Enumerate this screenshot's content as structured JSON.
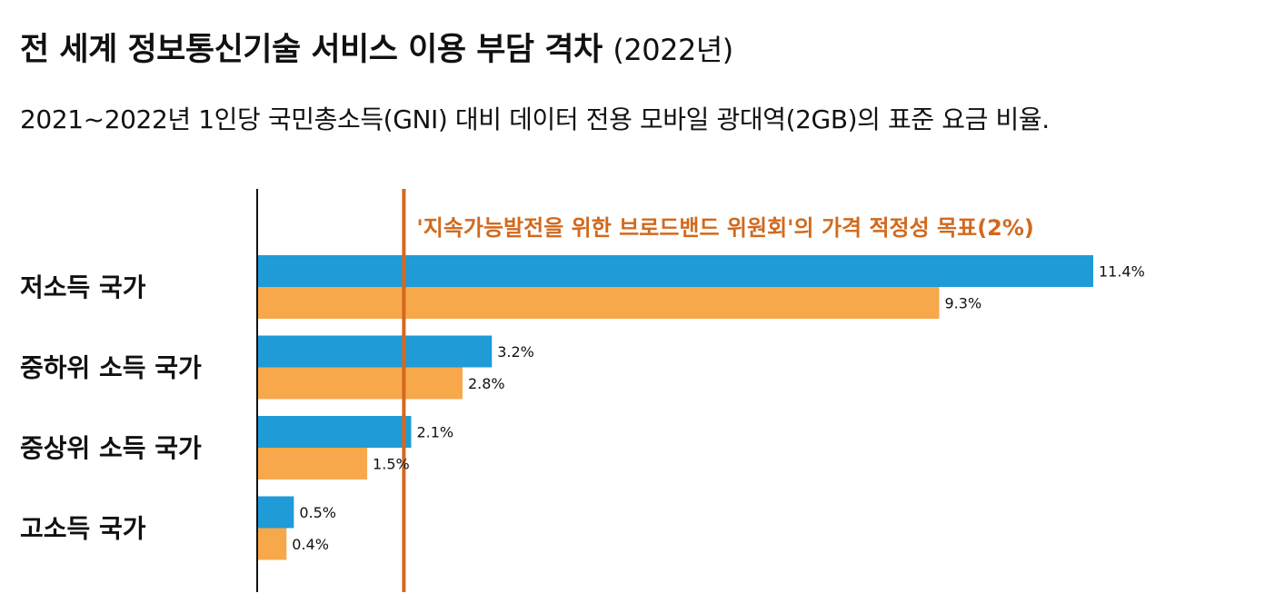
{
  "title": "전 세계 정보통신기술 서비스 이용 부담 격차",
  "title_suffix": "(2022년)",
  "subtitle": "2021~2022년 1인당 국민총소득(GNI) 대비 데이터 전용 모바일 광대역(2GB)의 표준 요금 비율.",
  "colors": {
    "series_2021": "#1f9bd7",
    "series_2022": "#f7a84a",
    "target_line": "#d2691e",
    "axis": "#111111"
  },
  "chart_data": {
    "type": "bar",
    "orientation": "horizontal",
    "categories": [
      "저소득 국가",
      "중하위 소득 국가",
      "중상위 소득 국가",
      "고소득 국가"
    ],
    "series": [
      {
        "values": [
          11.4,
          3.2,
          2.1,
          0.5
        ],
        "labels": [
          "11.4%",
          "3.2%",
          "2.1%",
          "0.5%"
        ]
      },
      {
        "values": [
          9.3,
          2.8,
          1.5,
          0.4
        ],
        "labels": [
          "9.3%",
          "2.8%",
          "1.5%",
          "0.4%"
        ]
      }
    ],
    "target": {
      "value": 2,
      "label": "'지속가능발전을 위한 브로드밴드 위원회'의 가격 적정성 목표(2%)"
    },
    "xlim": [
      0,
      12
    ],
    "grid": false,
    "legend": "none"
  }
}
